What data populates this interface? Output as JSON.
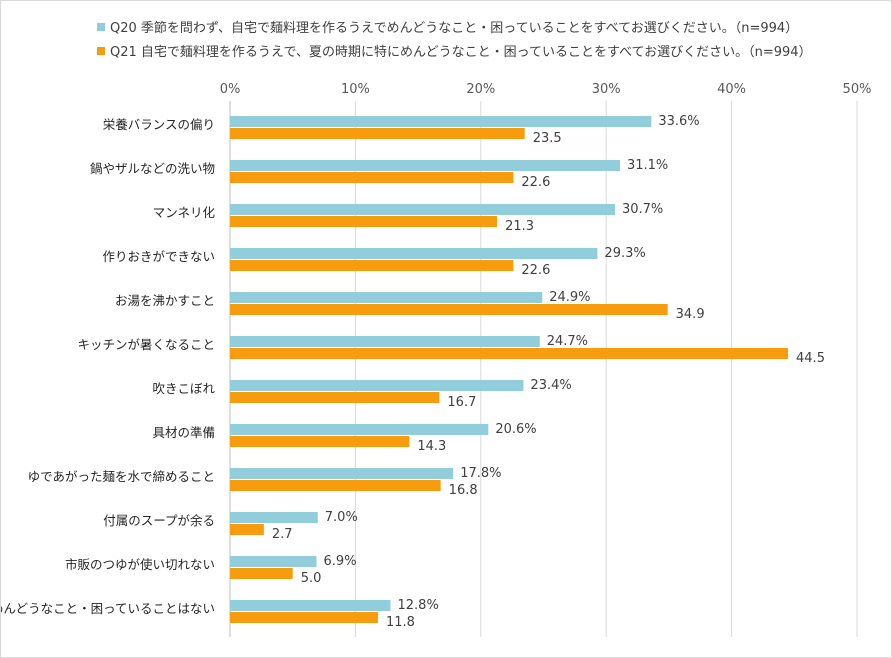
{
  "legend": [
    {
      "label": "Q20 季節を問わず、自宅で麺料理を作るうえでめんどうなこと・困っていることをすべてお選びください。（n=994）",
      "color": "#92CDDC"
    },
    {
      "label": "Q21 自宅で麺料理を作るうえで、夏の時期に特にめんどうなこと・困っていることをすべてお選びください。（n=994）",
      "color": "#F79C0F"
    }
  ],
  "chart_data": {
    "type": "bar",
    "orientation": "horizontal",
    "xlim": [
      0,
      50
    ],
    "xticks": [
      "0%",
      "10%",
      "20%",
      "30%",
      "40%",
      "50%"
    ],
    "xtick_values": [
      0,
      10,
      20,
      30,
      40,
      50
    ],
    "grid": true,
    "legend_position": "top",
    "categories": [
      "栄養バランスの偏り",
      "鍋やザルなどの洗い物",
      "マンネリ化",
      "作りおきができない",
      "お湯を沸かすこと",
      "キッチンが暑くなること",
      "吹きこぼれ",
      "具材の準備",
      "ゆであがった麺を水で締めること",
      "付属のスープが余る",
      "市販のつゆが使い切れない",
      "めんどうなこと・困っていることはない"
    ],
    "series": [
      {
        "name": "Q20 季節を問わず、自宅で麺料理を作るうえでめんどうなこと・困っていることをすべてお選びください。（n=994）",
        "color": "#92CDDC",
        "values": [
          33.6,
          31.1,
          30.7,
          29.3,
          24.9,
          24.7,
          23.4,
          20.6,
          17.8,
          7.0,
          6.9,
          12.8
        ],
        "labels": [
          "33.6%",
          "31.1%",
          "30.7%",
          "29.3%",
          "24.9%",
          "24.7%",
          "23.4%",
          "20.6%",
          "17.8%",
          "7.0%",
          "6.9%",
          "12.8%"
        ]
      },
      {
        "name": "Q21 自宅で麺料理を作るうえで、夏の時期に特にめんどうなこと・困っていることをすべてお選びください。（n=994）",
        "color": "#F79C0F",
        "values": [
          23.5,
          22.6,
          21.3,
          22.6,
          34.9,
          44.5,
          16.7,
          14.3,
          16.8,
          2.7,
          5.0,
          11.8
        ],
        "labels": [
          "23.5",
          "22.6",
          "21.3",
          "22.6",
          "34.9",
          "44.5",
          "16.7",
          "14.3",
          "16.8",
          "2.7",
          "5.0",
          "11.8"
        ]
      }
    ]
  }
}
